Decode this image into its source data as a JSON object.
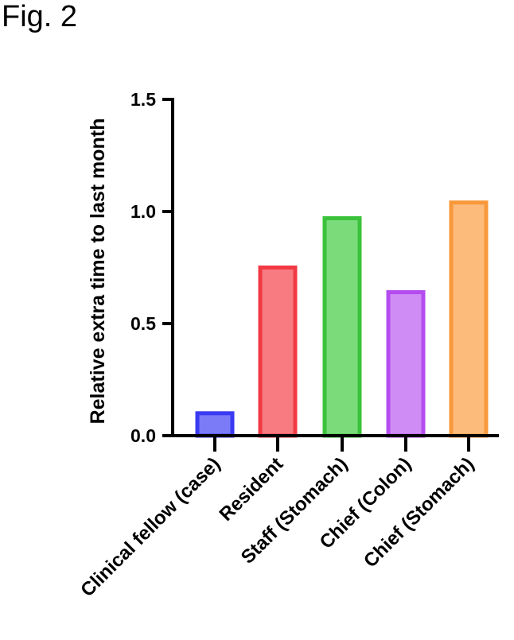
{
  "figure_label": "Fig. 2",
  "chart_data": {
    "type": "bar",
    "title": "",
    "xlabel": "",
    "ylabel": "Relative extra time to last month",
    "ylim": [
      0,
      1.5
    ],
    "yticks": [
      0.0,
      0.5,
      1.0,
      1.5
    ],
    "ytick_labels": [
      "0.0",
      "0.5",
      "1.0",
      "1.5"
    ],
    "grid": false,
    "categories": [
      "Clinical fellow (case)",
      "Resident",
      "Staff (Stomach)",
      "Chief (Colon)",
      "Chief (Stomach)"
    ],
    "values": [
      0.1,
      0.75,
      0.97,
      0.64,
      1.04
    ],
    "fill_colors": [
      "#7b7bf7",
      "#f77b80",
      "#7bdb7b",
      "#d08cf5",
      "#fcbb7b"
    ],
    "edge_colors": [
      "#3a3af2",
      "#f23a44",
      "#3ac23a",
      "#b44cef",
      "#f9983a"
    ]
  }
}
